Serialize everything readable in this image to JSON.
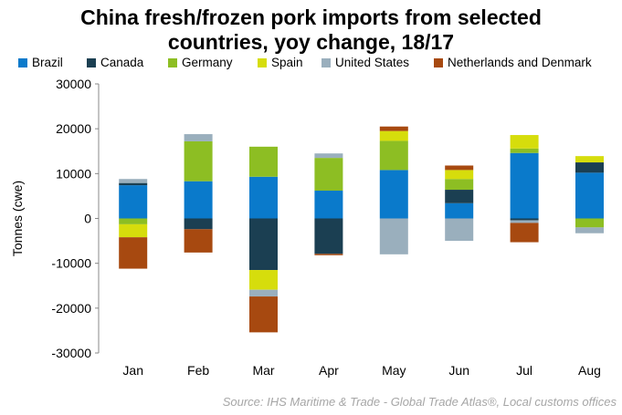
{
  "chart_data": {
    "type": "bar",
    "stacked": true,
    "title_lines": [
      "China fresh/frozen pork imports from selected",
      "countries, yoy change, 18/17"
    ],
    "ylabel": "Tonnes (cwe)",
    "xlabel": "",
    "ylim": [
      -30000,
      30000
    ],
    "yticks": [
      30000,
      20000,
      10000,
      0,
      -10000,
      -20000,
      -30000
    ],
    "grid": false,
    "legend_position": "top",
    "categories": [
      "Jan",
      "Feb",
      "Mar",
      "Apr",
      "May",
      "Jun",
      "Jul",
      "Aug"
    ],
    "series": [
      {
        "name": "Brazil",
        "color": "#0a7acb",
        "values": [
          7400,
          8300,
          9300,
          6200,
          10800,
          3400,
          14600,
          10200
        ]
      },
      {
        "name": "Canada",
        "color": "#1b3f52",
        "values": [
          500,
          -2400,
          -11500,
          -7900,
          0,
          3000,
          -400,
          2300
        ]
      },
      {
        "name": "Germany",
        "color": "#8dbe23",
        "values": [
          -1300,
          8900,
          6700,
          7300,
          6500,
          2400,
          1000,
          -2000
        ]
      },
      {
        "name": "Spain",
        "color": "#d6dd0c",
        "values": [
          -2900,
          0,
          -4400,
          0,
          2200,
          2000,
          3000,
          1400
        ]
      },
      {
        "name": "United States",
        "color": "#9aafbd",
        "values": [
          900,
          1600,
          -1500,
          1000,
          -8000,
          -5000,
          -600,
          -1300
        ]
      },
      {
        "name": "Netherlands and Denmark",
        "color": "#a74910",
        "values": [
          -7000,
          -5200,
          -8000,
          -300,
          1000,
          1000,
          -4300,
          0
        ]
      }
    ],
    "source": "Source: IHS Maritime & Trade - Global Trade Atlas®, Local customs offices"
  }
}
